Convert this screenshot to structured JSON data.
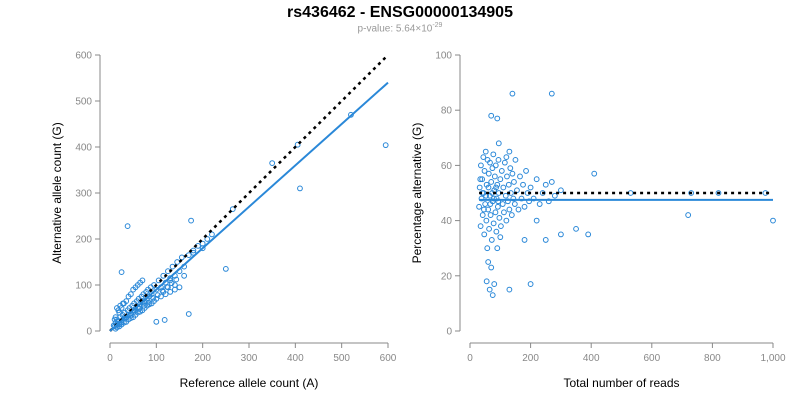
{
  "title": "rs436462 - ENSG00000134905",
  "subtitle": {
    "prefix": "p-value: 5.64×10",
    "exponent": "-29"
  },
  "colors": {
    "points": "#2a88d8",
    "fit_line": "#2a88d8",
    "reference_line": "#000000",
    "axis": "#888888"
  },
  "chart_data": [
    {
      "type": "scatter",
      "xlabel": "Reference allele count (A)",
      "ylabel": "Alternative allele count (G)",
      "xlim": [
        0,
        600
      ],
      "ylim": [
        0,
        600
      ],
      "xticks": [
        0,
        100,
        200,
        300,
        400,
        500,
        600
      ],
      "yticks": [
        0,
        100,
        200,
        300,
        400,
        500,
        600
      ],
      "xtick_labels": [
        "0",
        "100",
        "200",
        "300",
        "400",
        "500",
        "600"
      ],
      "ytick_labels": [
        "0",
        "100",
        "200",
        "300",
        "400",
        "500",
        "600"
      ],
      "grid": false,
      "reference_line": {
        "style": "dotted",
        "x": [
          0,
          600
        ],
        "y": [
          0,
          600
        ]
      },
      "fit_line": {
        "style": "solid",
        "x": [
          0,
          600
        ],
        "y": [
          0,
          540
        ]
      },
      "points": [
        [
          10,
          10
        ],
        [
          12,
          18
        ],
        [
          14,
          12
        ],
        [
          15,
          25
        ],
        [
          18,
          20
        ],
        [
          20,
          15
        ],
        [
          22,
          30
        ],
        [
          25,
          22
        ],
        [
          27,
          35
        ],
        [
          30,
          28
        ],
        [
          32,
          40
        ],
        [
          35,
          30
        ],
        [
          38,
          45
        ],
        [
          40,
          35
        ],
        [
          42,
          50
        ],
        [
          45,
          38
        ],
        [
          48,
          55
        ],
        [
          50,
          45
        ],
        [
          52,
          60
        ],
        [
          55,
          48
        ],
        [
          58,
          65
        ],
        [
          60,
          52
        ],
        [
          62,
          70
        ],
        [
          65,
          58
        ],
        [
          68,
          75
        ],
        [
          70,
          62
        ],
        [
          72,
          80
        ],
        [
          75,
          65
        ],
        [
          78,
          85
        ],
        [
          80,
          70
        ],
        [
          82,
          90
        ],
        [
          85,
          75
        ],
        [
          88,
          95
        ],
        [
          90,
          80
        ],
        [
          95,
          100
        ],
        [
          100,
          90
        ],
        [
          105,
          110
        ],
        [
          110,
          95
        ],
        [
          115,
          120
        ],
        [
          120,
          105
        ],
        [
          125,
          130
        ],
        [
          130,
          110
        ],
        [
          135,
          140
        ],
        [
          140,
          120
        ],
        [
          145,
          150
        ],
        [
          150,
          130
        ],
        [
          155,
          160
        ],
        [
          160,
          140
        ],
        [
          170,
          165
        ],
        [
          180,
          170
        ],
        [
          190,
          185
        ],
        [
          200,
          180
        ],
        [
          210,
          200
        ],
        [
          220,
          210
        ],
        [
          15,
          8
        ],
        [
          20,
          10
        ],
        [
          25,
          14
        ],
        [
          30,
          18
        ],
        [
          35,
          20
        ],
        [
          40,
          25
        ],
        [
          45,
          28
        ],
        [
          50,
          30
        ],
        [
          55,
          35
        ],
        [
          60,
          40
        ],
        [
          65,
          42
        ],
        [
          70,
          45
        ],
        [
          75,
          50
        ],
        [
          80,
          55
        ],
        [
          85,
          58
        ],
        [
          90,
          60
        ],
        [
          95,
          65
        ],
        [
          100,
          70
        ],
        [
          110,
          75
        ],
        [
          120,
          80
        ],
        [
          130,
          85
        ],
        [
          140,
          90
        ],
        [
          150,
          95
        ],
        [
          20,
          40
        ],
        [
          25,
          50
        ],
        [
          30,
          60
        ],
        [
          35,
          65
        ],
        [
          40,
          75
        ],
        [
          45,
          80
        ],
        [
          50,
          90
        ],
        [
          55,
          95
        ],
        [
          60,
          100
        ],
        [
          65,
          105
        ],
        [
          70,
          110
        ],
        [
          12,
          30
        ],
        [
          18,
          45
        ],
        [
          22,
          55
        ],
        [
          28,
          60
        ],
        [
          15,
          50
        ],
        [
          10,
          25
        ],
        [
          8,
          12
        ],
        [
          12,
          5
        ],
        [
          16,
          15
        ],
        [
          24,
          18
        ],
        [
          33,
          27
        ],
        [
          44,
          33
        ],
        [
          53,
          42
        ],
        [
          63,
          48
        ],
        [
          73,
          55
        ],
        [
          83,
          62
        ],
        [
          93,
          72
        ],
        [
          103,
          78
        ],
        [
          113,
          88
        ],
        [
          123,
          96
        ],
        [
          133,
          104
        ],
        [
          143,
          112
        ],
        [
          38,
          228
        ],
        [
          25,
          128
        ],
        [
          175,
          240
        ],
        [
          170,
          37
        ],
        [
          118,
          24
        ],
        [
          100,
          20
        ],
        [
          250,
          135
        ],
        [
          265,
          265
        ],
        [
          350,
          365
        ],
        [
          410,
          310
        ],
        [
          405,
          405
        ],
        [
          520,
          470
        ],
        [
          595,
          404
        ],
        [
          200,
          190
        ],
        [
          180,
          175
        ],
        [
          160,
          120
        ],
        [
          140,
          100
        ],
        [
          130,
          115
        ],
        [
          125,
          95
        ],
        [
          115,
          85
        ]
      ]
    },
    {
      "type": "scatter",
      "xlabel": "Total number of reads",
      "ylabel": "Percentage alternative (G)",
      "xlim": [
        0,
        1000
      ],
      "ylim": [
        0,
        100
      ],
      "xticks": [
        0,
        200,
        400,
        600,
        800,
        1000
      ],
      "yticks": [
        0,
        20,
        40,
        60,
        80,
        100
      ],
      "xtick_labels": [
        "0",
        "200",
        "400",
        "600",
        "800",
        "1,000"
      ],
      "ytick_labels": [
        "0",
        "20",
        "40",
        "60",
        "80",
        "100"
      ],
      "grid": false,
      "reference_line": {
        "style": "dotted",
        "x": [
          30,
          1000
        ],
        "y": [
          50,
          50
        ]
      },
      "fit_line": {
        "style": "solid",
        "x": [
          30,
          1000
        ],
        "y": [
          47.5,
          47.5
        ]
      },
      "points": [
        [
          30,
          45
        ],
        [
          32,
          52
        ],
        [
          35,
          38
        ],
        [
          36,
          60
        ],
        [
          38,
          48
        ],
        [
          40,
          55
        ],
        [
          42,
          42
        ],
        [
          44,
          63
        ],
        [
          45,
          50
        ],
        [
          47,
          35
        ],
        [
          48,
          58
        ],
        [
          50,
          46
        ],
        [
          52,
          65
        ],
        [
          54,
          40
        ],
        [
          55,
          53
        ],
        [
          57,
          30
        ],
        [
          58,
          62
        ],
        [
          60,
          44
        ],
        [
          62,
          57
        ],
        [
          63,
          37
        ],
        [
          65,
          49
        ],
        [
          66,
          61
        ],
        [
          68,
          42
        ],
        [
          70,
          54
        ],
        [
          72,
          33
        ],
        [
          74,
          59
        ],
        [
          75,
          47
        ],
        [
          77,
          64
        ],
        [
          78,
          39
        ],
        [
          80,
          51
        ],
        [
          82,
          56
        ],
        [
          84,
          43
        ],
        [
          85,
          60
        ],
        [
          87,
          36
        ],
        [
          88,
          48
        ],
        [
          90,
          53
        ],
        [
          92,
          45
        ],
        [
          94,
          62
        ],
        [
          95,
          50
        ],
        [
          97,
          41
        ],
        [
          100,
          55
        ],
        [
          102,
          38
        ],
        [
          105,
          58
        ],
        [
          108,
          46
        ],
        [
          110,
          52
        ],
        [
          112,
          43
        ],
        [
          115,
          61
        ],
        [
          118,
          49
        ],
        [
          120,
          40
        ],
        [
          122,
          56
        ],
        [
          125,
          47
        ],
        [
          128,
          53
        ],
        [
          130,
          44
        ],
        [
          133,
          59
        ],
        [
          135,
          50
        ],
        [
          138,
          42
        ],
        [
          140,
          57
        ],
        [
          143,
          48
        ],
        [
          145,
          54
        ],
        [
          148,
          46
        ],
        [
          150,
          62
        ],
        [
          155,
          51
        ],
        [
          160,
          44
        ],
        [
          165,
          56
        ],
        [
          170,
          48
        ],
        [
          175,
          53
        ],
        [
          180,
          45
        ],
        [
          185,
          58
        ],
        [
          190,
          50
        ],
        [
          195,
          47
        ],
        [
          200,
          52
        ],
        [
          210,
          48
        ],
        [
          220,
          55
        ],
        [
          230,
          46
        ],
        [
          240,
          50
        ],
        [
          250,
          53
        ],
        [
          260,
          47
        ],
        [
          270,
          54
        ],
        [
          280,
          49
        ],
        [
          300,
          51
        ],
        [
          34,
          55
        ],
        [
          41,
          50
        ],
        [
          46,
          44
        ],
        [
          53,
          49
        ],
        [
          61,
          52
        ],
        [
          67,
          46
        ],
        [
          73,
          50
        ],
        [
          79,
          48
        ],
        [
          86,
          52
        ],
        [
          93,
          47
        ],
        [
          60,
          25
        ],
        [
          70,
          23
        ],
        [
          55,
          18
        ],
        [
          65,
          15
        ],
        [
          75,
          13
        ],
        [
          80,
          17
        ],
        [
          140,
          86
        ],
        [
          270,
          86
        ],
        [
          70,
          78
        ],
        [
          90,
          77
        ],
        [
          95,
          68
        ],
        [
          130,
          65
        ],
        [
          120,
          63
        ],
        [
          390,
          35
        ],
        [
          410,
          57
        ],
        [
          530,
          50
        ],
        [
          720,
          42
        ],
        [
          730,
          50
        ],
        [
          820,
          50
        ],
        [
          975,
          50
        ],
        [
          1000,
          40
        ],
        [
          130,
          15
        ],
        [
          200,
          17
        ],
        [
          100,
          34
        ],
        [
          90,
          30
        ],
        [
          180,
          33
        ],
        [
          250,
          33
        ],
        [
          300,
          35
        ],
        [
          350,
          37
        ],
        [
          220,
          40
        ]
      ]
    }
  ]
}
